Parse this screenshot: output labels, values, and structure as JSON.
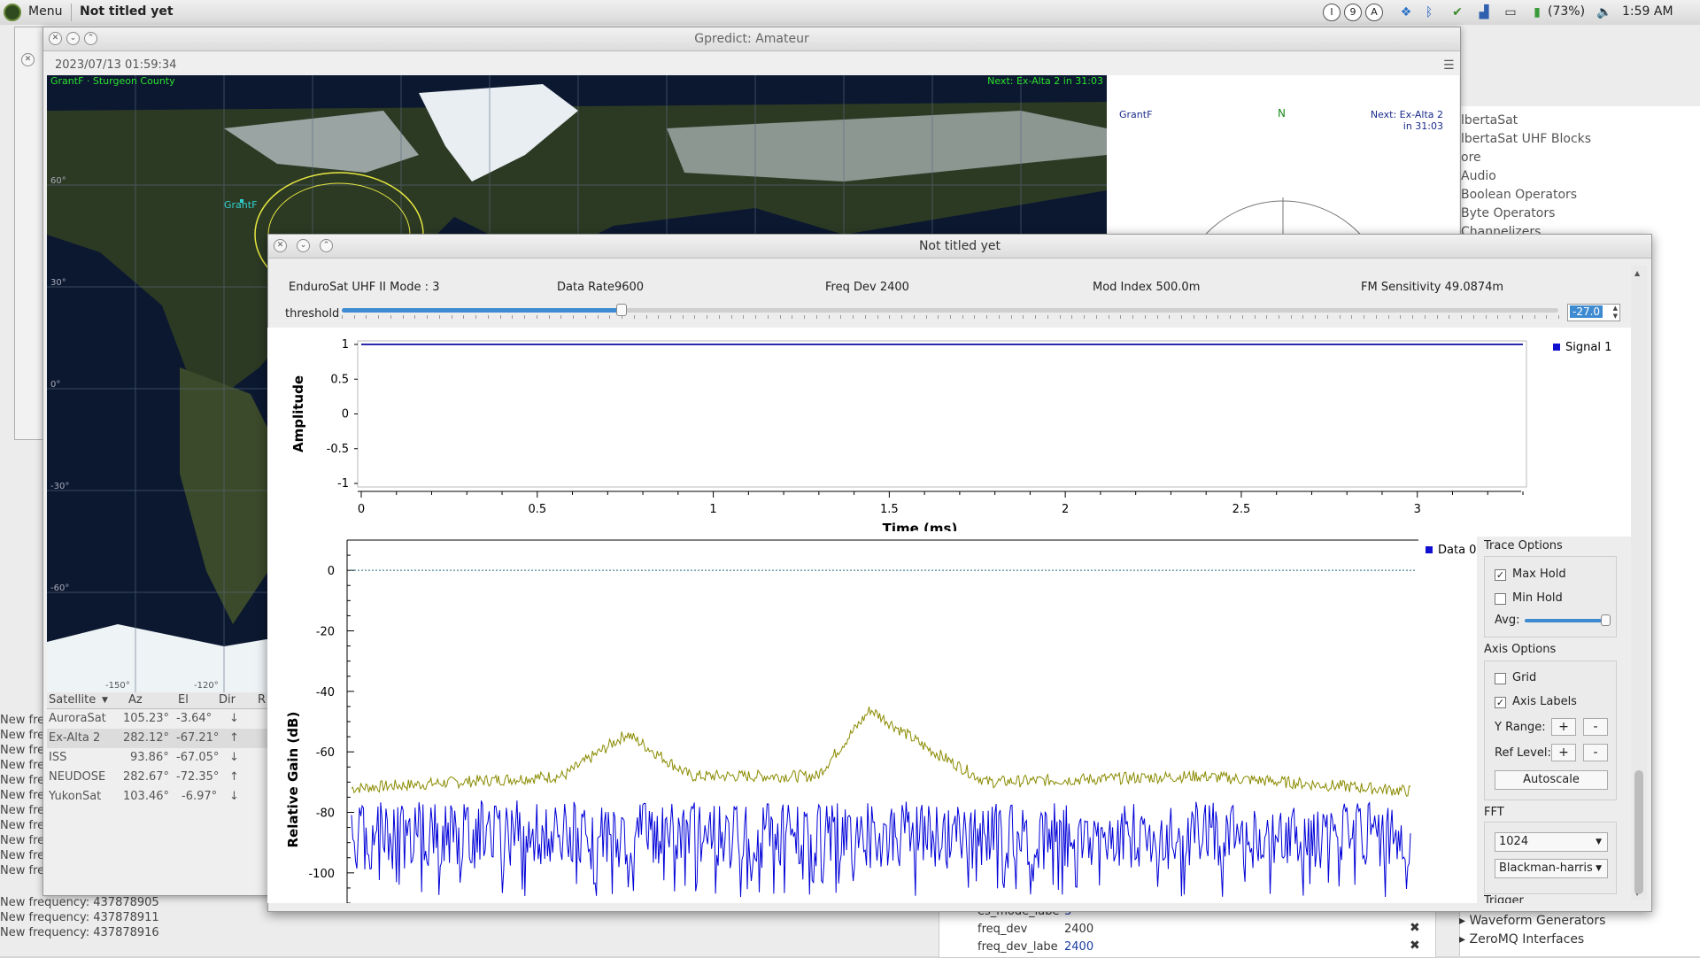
{
  "panel": {
    "menu_label": "Menu",
    "task_title": "Not titled yet",
    "tray_letters": [
      "I",
      "9",
      "A"
    ],
    "battery": "(73%)",
    "clock": "1:59 AM"
  },
  "grc": {
    "block_tree": [
      "lbertaSat",
      "lbertaSat UHF Blocks",
      "ore",
      "Audio",
      "Boolean Operators",
      "Byte Operators",
      "Channelizers"
    ],
    "block_tree_bottom": [
      "Waveform Generators",
      "ZeroMQ Interfaces"
    ],
    "props": [
      {
        "name": "es_mode_labe",
        "value": "3"
      },
      {
        "name": "freq_dev",
        "value": "2400"
      },
      {
        "name": "freq_dev_labe",
        "value": "2400"
      }
    ],
    "console_prefix": "New fre",
    "console_lines": [
      "New frequency: 437878905",
      "New frequency: 437878911",
      "New frequency: 437878916"
    ]
  },
  "gpredict": {
    "title": "Gpredict: Amateur",
    "date": "2023/07/13 01:59:34",
    "map_station": "GrantF · Sturgeon County",
    "map_next": "Next: Ex-Alta 2 in 31:03",
    "map_sat_label": "GrantF",
    "lat_labels": [
      "60°",
      "30°",
      "0°",
      "-30°",
      "-60°"
    ],
    "lon_labels": [
      "-150°",
      "-120°"
    ],
    "polar_station": "GrantF",
    "polar_north": "N",
    "polar_next_1": "Next: Ex-Alta 2",
    "polar_next_2": "in 31:03",
    "table_headers": {
      "sat": "Satellite",
      "az": "Az",
      "el": "El",
      "dir": "Dir",
      "r": "R"
    },
    "satellites": [
      {
        "name": "AuroraSat",
        "az": "105.23°",
        "el": "-3.64°",
        "dir": "↓"
      },
      {
        "name": "Ex-Alta 2",
        "az": "282.12°",
        "el": "-67.21°",
        "dir": "↑"
      },
      {
        "name": "ISS",
        "az": "93.86°",
        "el": "-67.05°",
        "dir": "↓"
      },
      {
        "name": "NEUDOSE",
        "az": "282.67°",
        "el": "-72.35°",
        "dir": "↑"
      },
      {
        "name": "YukonSat",
        "az": "103.46°",
        "el": "-6.97°",
        "dir": "↓"
      }
    ]
  },
  "flowgraph": {
    "title": "Not titled yet",
    "params": [
      {
        "label": "EnduroSat UHF II Mode :",
        "value": "3"
      },
      {
        "label": "Data Rate",
        "value": "9600"
      },
      {
        "label": "Freq Dev",
        "value": "2400"
      },
      {
        "label": "Mod Index",
        "value": "500.0m"
      },
      {
        "label": "FM Sensitivity",
        "value": "49.0874m"
      }
    ],
    "threshold_label": "threshold",
    "threshold_value": "-27.0",
    "threshold_level": 0.23,
    "time_plot": {
      "ylabel": "Amplitude",
      "xlabel": "Time (ms)",
      "yticks": [
        "1",
        "0.5",
        "0",
        "-0.5",
        "-1"
      ],
      "xticks": [
        "0",
        "0.5",
        "1",
        "1.5",
        "2",
        "2.5",
        "3"
      ],
      "legend": "Signal 1"
    },
    "freq_plot": {
      "ylabel": "Relative Gain (dB)",
      "yticks": [
        "0",
        "-20",
        "-40",
        "-60",
        "-80",
        "-100"
      ],
      "legend": "Data 0"
    },
    "trace_options": {
      "title": "Trace Options",
      "max_hold": "Max Hold",
      "min_hold": "Min Hold",
      "avg": "Avg:"
    },
    "axis_options": {
      "title": "Axis Options",
      "grid": "Grid",
      "axis_labels": "Axis Labels",
      "y_range": "Y Range:",
      "ref_level": "Ref Level:",
      "plus": "+",
      "minus": "-",
      "autoscale": "Autoscale"
    },
    "fft": {
      "title": "FFT",
      "size": "1024",
      "window": "Blackman-harris"
    },
    "trigger_title": "Trigger"
  },
  "chart_data": [
    {
      "type": "line",
      "xlabel": "Time (ms)",
      "ylabel": "Amplitude",
      "xlim": [
        0,
        3.3
      ],
      "ylim": [
        -1,
        1
      ],
      "series": [
        {
          "name": "Signal 1",
          "x": [
            0,
            3.3
          ],
          "values": [
            1,
            1
          ]
        }
      ]
    },
    {
      "type": "line",
      "ylabel": "Relative Gain (dB)",
      "ylim": [
        -110,
        10
      ],
      "reference_line": 0,
      "series": [
        {
          "name": "Data 0",
          "color": "#0000d8",
          "values_range": [
            -108,
            -76
          ]
        },
        {
          "color": "#8a8a00",
          "x_frac": [
            0,
            0.2,
            0.26,
            0.32,
            0.44,
            0.49,
            0.54,
            0.6,
            0.8,
            1
          ],
          "values": [
            -72,
            -68,
            -54,
            -68,
            -68,
            -46,
            -58,
            -70,
            -68,
            -73
          ]
        }
      ]
    }
  ]
}
